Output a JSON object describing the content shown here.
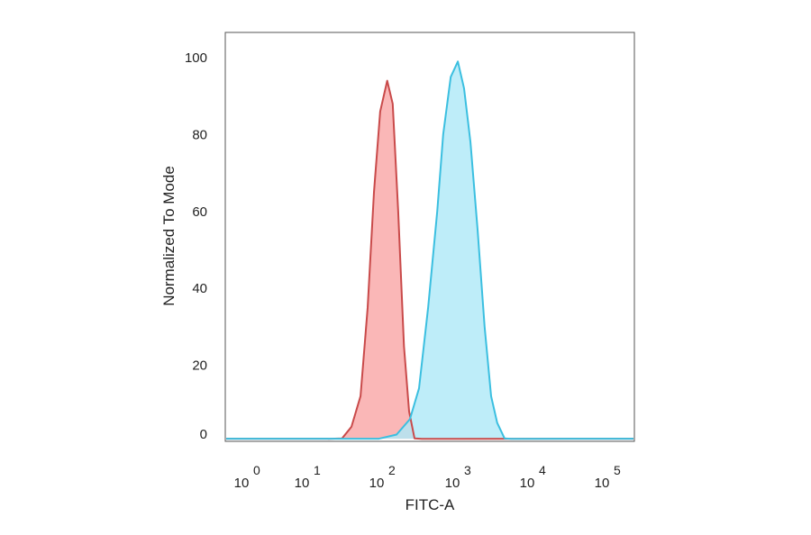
{
  "chart_data": {
    "type": "area",
    "title": "",
    "xlabel": "FITC-A",
    "ylabel": "Normalized To Mode",
    "x_scale": "log",
    "x_ticks": [
      {
        "base": "10",
        "exp": "0"
      },
      {
        "base": "10",
        "exp": "1"
      },
      {
        "base": "10",
        "exp": "2"
      },
      {
        "base": "10",
        "exp": "3"
      },
      {
        "base": "10",
        "exp": "4"
      },
      {
        "base": "10",
        "exp": "5"
      }
    ],
    "y_ticks": [
      "0",
      "20",
      "40",
      "60",
      "80",
      "100"
    ],
    "ylim": [
      0,
      106
    ],
    "grid": false,
    "series": [
      {
        "color": "#c94a4a",
        "fill": "#f9a5a5",
        "points": [
          [
            19.5,
            0
          ],
          [
            30,
            1
          ],
          [
            40,
            4
          ],
          [
            53,
            12
          ],
          [
            66,
            35
          ],
          [
            80,
            65
          ],
          [
            97,
            86
          ],
          [
            120,
            94
          ],
          [
            142,
            88
          ],
          [
            168,
            60
          ],
          [
            200,
            25
          ],
          [
            234,
            8
          ],
          [
            276,
            1
          ],
          [
            345,
            0
          ]
        ]
      },
      {
        "color": "#3bbfe0",
        "fill": "#aee8f8",
        "points": [
          [
            92,
            0
          ],
          [
            160,
            2
          ],
          [
            240,
            6
          ],
          [
            316,
            14
          ],
          [
            417,
            35
          ],
          [
            550,
            60
          ],
          [
            660,
            80
          ],
          [
            830,
            95
          ],
          [
            1030,
            99
          ],
          [
            1250,
            92
          ],
          [
            1520,
            78
          ],
          [
            1900,
            55
          ],
          [
            2350,
            30
          ],
          [
            2870,
            12
          ],
          [
            3470,
            5
          ],
          [
            4340,
            1
          ],
          [
            5370,
            0
          ]
        ]
      }
    ]
  }
}
